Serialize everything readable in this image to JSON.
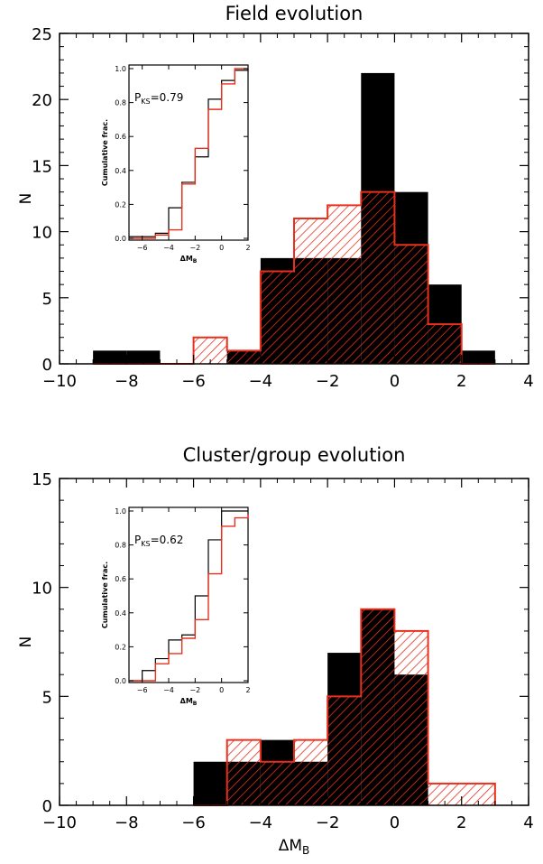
{
  "colors": {
    "field_bars": "#000000",
    "evolved_bars": "#e8301c",
    "frame": "#000000"
  },
  "chart_data": [
    {
      "type": "bar",
      "title": "Field evolution",
      "xlabel": "",
      "ylabel": "N",
      "xlim": [
        -10,
        4
      ],
      "ylim": [
        0,
        25
      ],
      "xticks": [
        "−10",
        "−8",
        "−6",
        "−4",
        "−2",
        "0",
        "2",
        "4"
      ],
      "yticks": [
        "0",
        "5",
        "10",
        "15",
        "20",
        "25"
      ],
      "bin_edges": [
        -9,
        -8,
        -7,
        -6,
        -5,
        -4,
        -3,
        -2,
        -1,
        0,
        1,
        2,
        3
      ],
      "series": [
        {
          "style": "solid-black",
          "values": [
            1,
            1,
            0,
            0,
            1,
            8,
            8,
            8,
            22,
            13,
            6,
            1
          ]
        },
        {
          "style": "red-hatched",
          "values": [
            0,
            0,
            0,
            2,
            1,
            7,
            11,
            12,
            13,
            9,
            3,
            0
          ]
        }
      ],
      "inset": {
        "type": "line",
        "xlabel": "ΔM_B",
        "ylabel": "Cumulative frac.",
        "xlim": [
          -7,
          2
        ],
        "ylim": [
          0,
          1
        ],
        "xticks": [
          "−6",
          "−4",
          "−2",
          "0",
          "2"
        ],
        "yticks": [
          "0.0",
          "0.2",
          "0.4",
          "0.6",
          "0.8",
          "1.0"
        ],
        "annotation_label": "P",
        "annotation_sub": "KS",
        "annotation_value": "=0.79",
        "x": [
          -7,
          -6,
          -5,
          -4,
          -3,
          -2,
          -1,
          0,
          1,
          2
        ],
        "series": [
          {
            "style": "black-step",
            "values": [
              0.01,
              0.01,
              0.03,
              0.18,
              0.33,
              0.48,
              0.82,
              0.93,
              0.99,
              1.0
            ]
          },
          {
            "style": "red-step",
            "values": [
              0.0,
              0.0,
              0.02,
              0.05,
              0.32,
              0.53,
              0.76,
              0.91,
              1.0,
              1.0
            ]
          }
        ]
      }
    },
    {
      "type": "bar",
      "title": "Cluster/group evolution",
      "xlabel": "ΔM_B",
      "ylabel": "N",
      "xlim": [
        -10,
        4
      ],
      "ylim": [
        0,
        15
      ],
      "xticks": [
        "−10",
        "−8",
        "−6",
        "−4",
        "−2",
        "0",
        "2",
        "4"
      ],
      "yticks": [
        "0",
        "5",
        "10",
        "15"
      ],
      "bin_edges": [
        -6,
        -5,
        -4,
        -3,
        -2,
        -1,
        0,
        1,
        2,
        3
      ],
      "series": [
        {
          "style": "solid-black",
          "values": [
            2,
            2,
            3,
            2,
            7,
            9,
            6,
            0,
            0
          ]
        },
        {
          "style": "red-hatched",
          "values": [
            0,
            3,
            2,
            3,
            5,
            9,
            8,
            1,
            1
          ]
        }
      ],
      "inset": {
        "type": "line",
        "xlabel": "ΔM_B",
        "ylabel": "Cumulative frac.",
        "xlim": [
          -7,
          2
        ],
        "ylim": [
          0,
          1
        ],
        "xticks": [
          "−6",
          "−4",
          "−2",
          "0",
          "2"
        ],
        "yticks": [
          "0.0",
          "0.2",
          "0.4",
          "0.6",
          "0.8",
          "1.0"
        ],
        "annotation_label": "P",
        "annotation_sub": "KS",
        "annotation_value": "=0.62",
        "x": [
          -7,
          -6,
          -5,
          -4,
          -3,
          -2,
          -1,
          0,
          1,
          2
        ],
        "series": [
          {
            "style": "black-step",
            "values": [
              0.0,
              0.06,
              0.13,
              0.24,
              0.27,
              0.5,
              0.83,
              1.0,
              1.0,
              1.0
            ]
          },
          {
            "style": "red-step",
            "values": [
              0.0,
              0.0,
              0.1,
              0.16,
              0.25,
              0.36,
              0.63,
              0.91,
              0.96,
              0.98
            ]
          }
        ]
      }
    }
  ]
}
